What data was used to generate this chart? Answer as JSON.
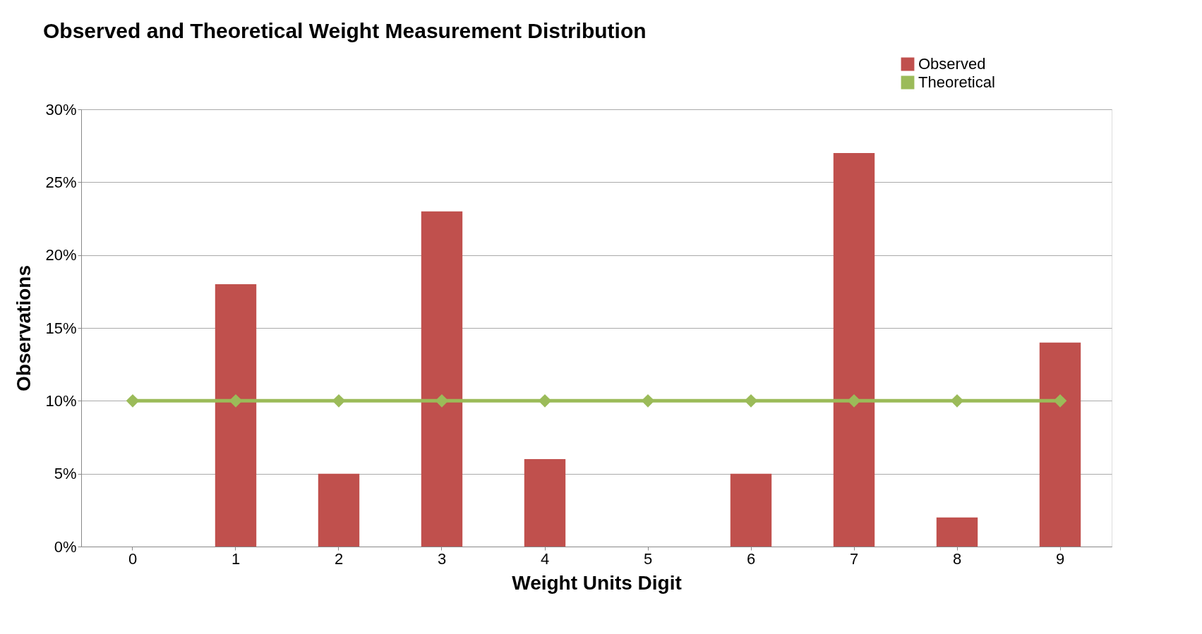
{
  "chart_data": {
    "type": "bar",
    "title": "Observed and Theoretical Weight Measurement Distribution",
    "xlabel": "Weight Units Digit",
    "ylabel": "Observations",
    "categories": [
      "0",
      "1",
      "2",
      "3",
      "4",
      "5",
      "6",
      "7",
      "8",
      "9"
    ],
    "series": [
      {
        "name": "Observed",
        "color": "#c0504d",
        "values": [
          0,
          18,
          5,
          23,
          6,
          0,
          5,
          27,
          2,
          14
        ]
      },
      {
        "name": "Theoretical",
        "type": "line",
        "color": "#9bbb59",
        "marker": "diamond",
        "values": [
          10,
          10,
          10,
          10,
          10,
          10,
          10,
          10,
          10,
          10
        ]
      }
    ],
    "ylim": [
      0,
      30
    ],
    "yticks": [
      {
        "value": 0,
        "label": "0%"
      },
      {
        "value": 5,
        "label": "5%"
      },
      {
        "value": 10,
        "label": "10%"
      },
      {
        "value": 15,
        "label": "15%"
      },
      {
        "value": 20,
        "label": "20%"
      },
      {
        "value": 25,
        "label": "25%"
      },
      {
        "value": 30,
        "label": "30%"
      }
    ],
    "grid": "y",
    "legend": "top right"
  }
}
